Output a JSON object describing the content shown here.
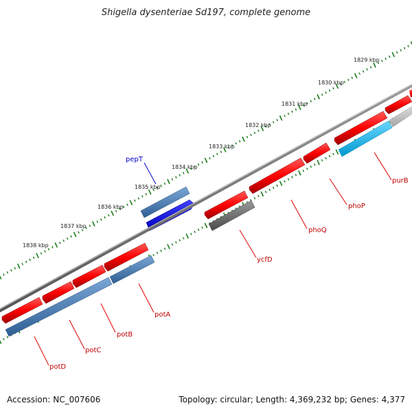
{
  "title": "Shigella dysenteriae Sd197, complete genome",
  "footer": {
    "accession": "Accession: NC_007606",
    "topology": "Topology: circular; Length: 4,369,232 bp; Genes: 4,377"
  },
  "ticks_outer": [
    "1829 kbp",
    "1830 kbp",
    "1831 kbp",
    "1832 kbp",
    "1833 kbp",
    "1834 kbp",
    "1835 kbp",
    "1836 kbp",
    "1837 kbp",
    "1838 kbp"
  ],
  "genes": [
    {
      "name": "pepT",
      "strand": "forward",
      "color": "#0000cc"
    },
    {
      "name": "purB",
      "strand": "reverse",
      "color": "#c00000"
    },
    {
      "name": "phoP",
      "strand": "reverse",
      "color": "#c00000"
    },
    {
      "name": "phoQ",
      "strand": "reverse",
      "color": "#c00000"
    },
    {
      "name": "ycfD",
      "strand": "reverse",
      "color": "#c00000"
    },
    {
      "name": "potA",
      "strand": "reverse",
      "color": "#c00000"
    },
    {
      "name": "potB",
      "strand": "reverse",
      "color": "#c00000"
    },
    {
      "name": "potC",
      "strand": "reverse",
      "color": "#c00000"
    },
    {
      "name": "potD",
      "strand": "reverse",
      "color": "#c00000"
    }
  ],
  "colors": {
    "cds": "#ff0000",
    "cds_dark": "#b80000",
    "gene_blue": "#4a7fb5",
    "gene_blue_bright": "#0000ff",
    "gene_cyan": "#00b8f0",
    "gene_gray": "#777777",
    "gene_lightgray": "#bdbdbd",
    "backbone": "#6e6e6e",
    "tick": "#1a7a1a",
    "label_line": "#e00000",
    "label_line_blue": "#0000cc"
  }
}
